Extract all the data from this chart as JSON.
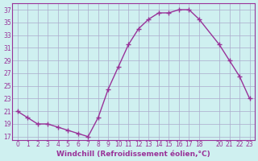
{
  "x": [
    0,
    1,
    2,
    3,
    4,
    5,
    6,
    7,
    8,
    9,
    10,
    11,
    12,
    13,
    14,
    15,
    16,
    17,
    18,
    20,
    21,
    22,
    23
  ],
  "y": [
    21,
    20,
    19,
    19,
    18.5,
    18,
    17.5,
    17,
    20,
    24.5,
    28,
    31.5,
    34,
    35.5,
    36.5,
    36.5,
    37,
    37,
    35.5,
    31.5,
    29,
    26.5,
    23
  ],
  "line_color": "#993399",
  "marker": "+",
  "bg_color": "#cff0f0",
  "grid_color": "#aaaacc",
  "xlabel": "Windchill (Refroidissement éolien,°C)",
  "xlabel_color": "#993399",
  "ylabel_ticks": [
    17,
    19,
    21,
    23,
    25,
    27,
    29,
    31,
    33,
    35,
    37
  ],
  "xticks": [
    0,
    1,
    2,
    3,
    4,
    5,
    6,
    7,
    8,
    9,
    10,
    11,
    12,
    13,
    14,
    15,
    16,
    17,
    18,
    20,
    21,
    22,
    23
  ],
  "ylim": [
    16.5,
    38
  ],
  "xlim": [
    -0.5,
    23.5
  ],
  "tick_color": "#993399",
  "spine_color": "#993399"
}
